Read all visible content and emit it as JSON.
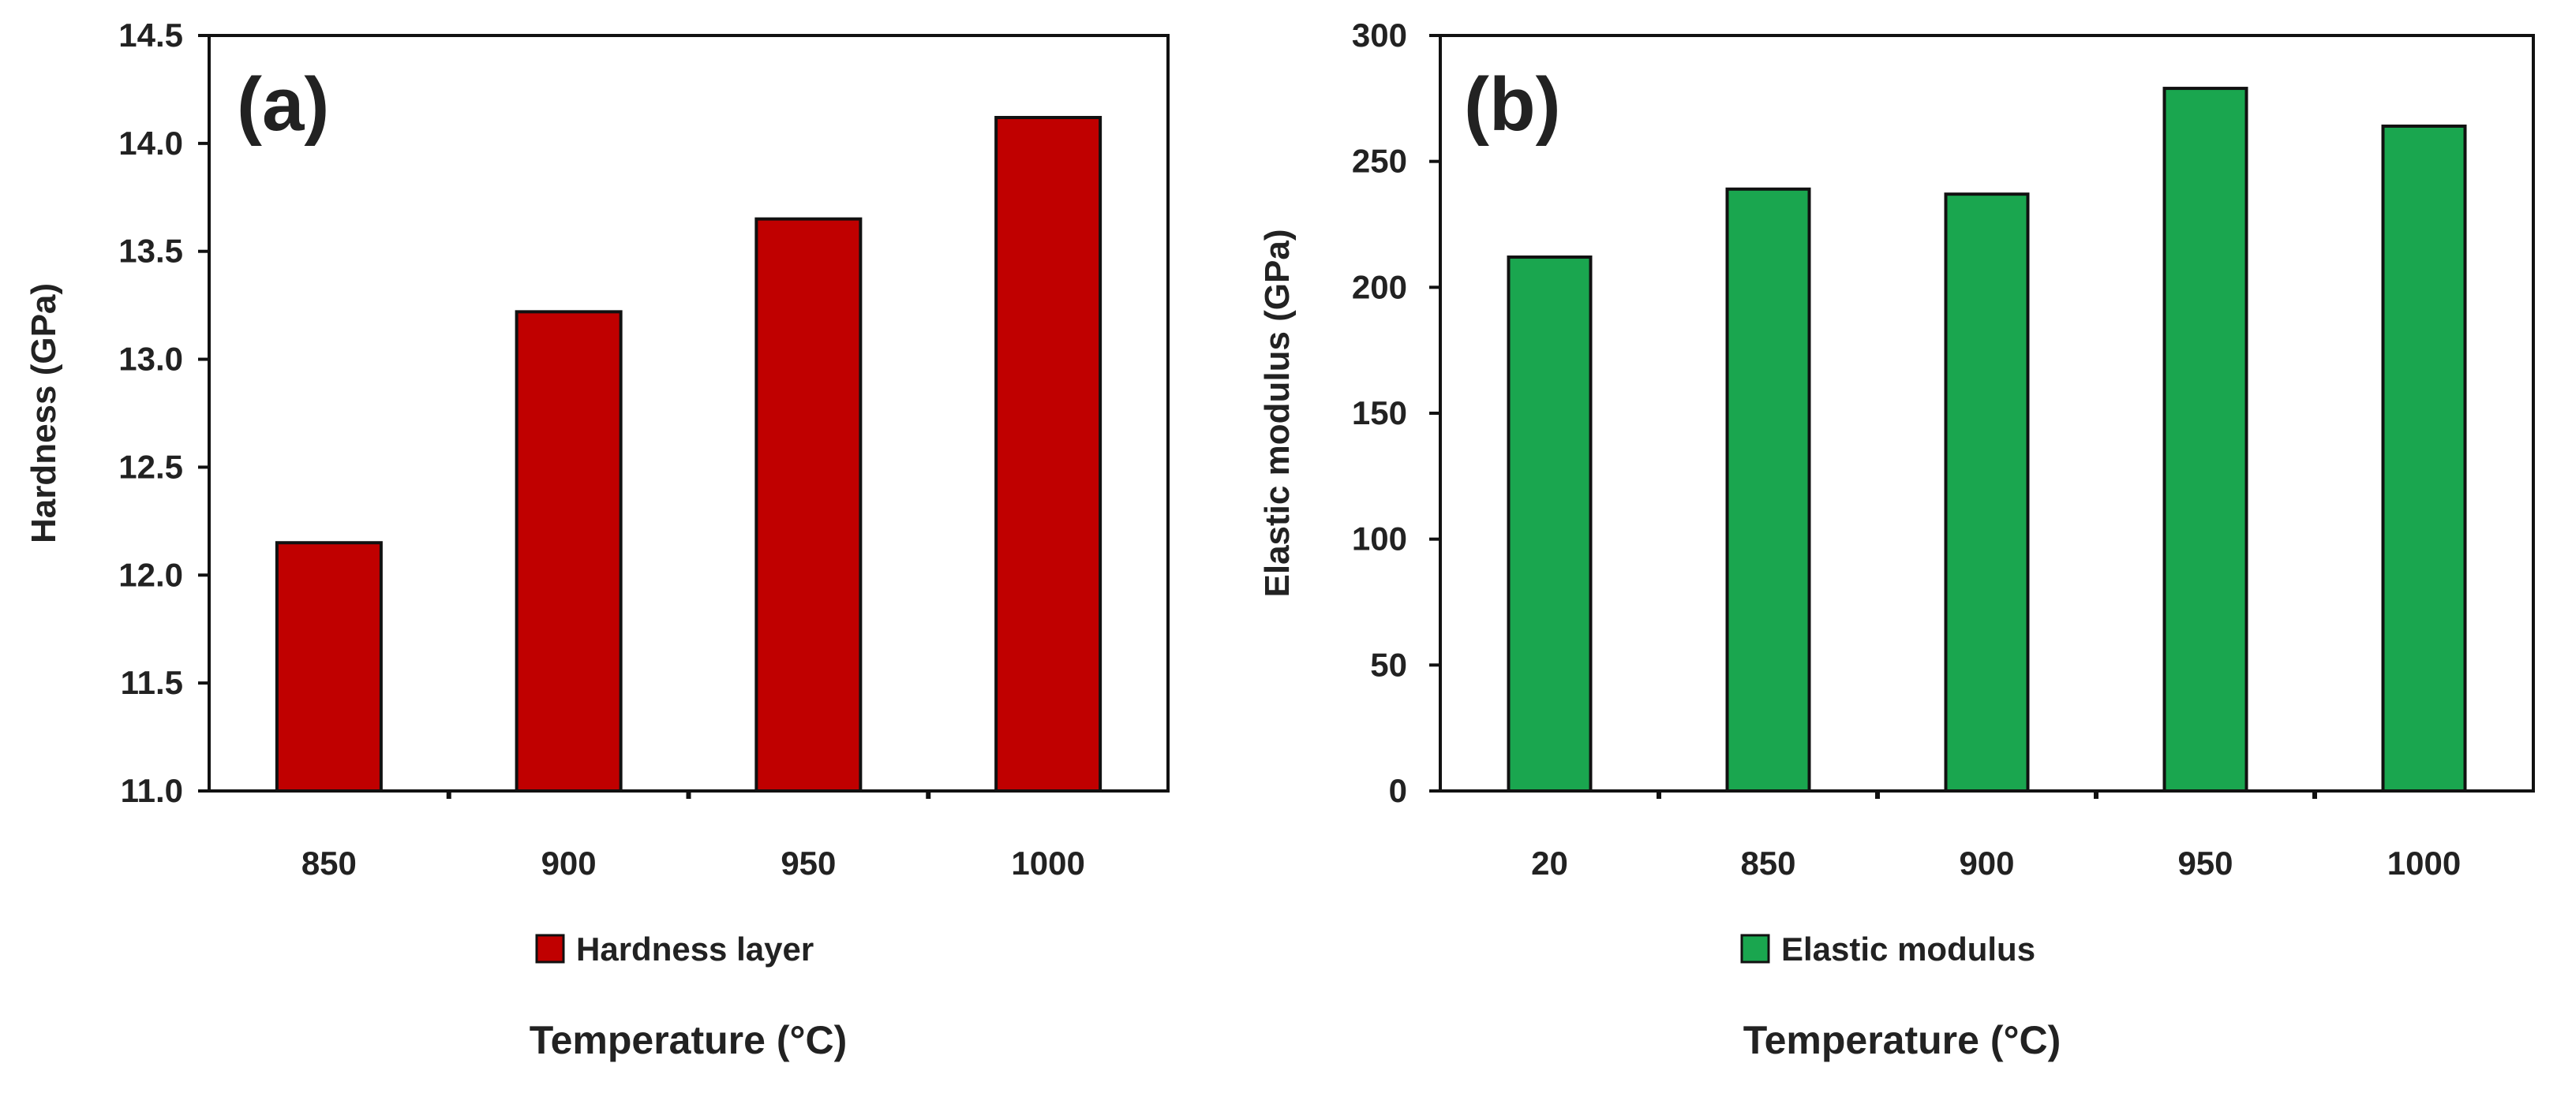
{
  "chart_data": [
    {
      "type": "bar",
      "panel_label": "(a)",
      "categories": [
        "850",
        "900",
        "950",
        "1000"
      ],
      "series": [
        {
          "name": "Hardness layer",
          "values": [
            12.15,
            13.22,
            13.65,
            14.12
          ]
        }
      ],
      "ylabel": "Hardness (GPa)",
      "xlabel": "Temperature (°C)",
      "ylim": [
        11.0,
        14.5
      ],
      "yticks": [
        "11.0",
        "11.5",
        "12.0",
        "12.5",
        "13.0",
        "13.5",
        "14.0",
        "14.5"
      ],
      "legend": "Hardness layer",
      "legend_position": "bottom",
      "grid": false,
      "bar_color": "#c00000"
    },
    {
      "type": "bar",
      "panel_label": "(b)",
      "categories": [
        "20",
        "850",
        "900",
        "950",
        "1000"
      ],
      "series": [
        {
          "name": "Elastic modulus",
          "values": [
            212,
            239,
            237,
            279,
            264
          ]
        }
      ],
      "ylabel": "Elastic modulus (GPa)",
      "xlabel": "Temperature (°C)",
      "ylim": [
        0,
        300
      ],
      "yticks": [
        "0",
        "50",
        "100",
        "150",
        "200",
        "250",
        "300"
      ],
      "legend": "Elastic modulus",
      "legend_position": "bottom",
      "grid": false,
      "bar_color": "#1aa64f"
    }
  ]
}
